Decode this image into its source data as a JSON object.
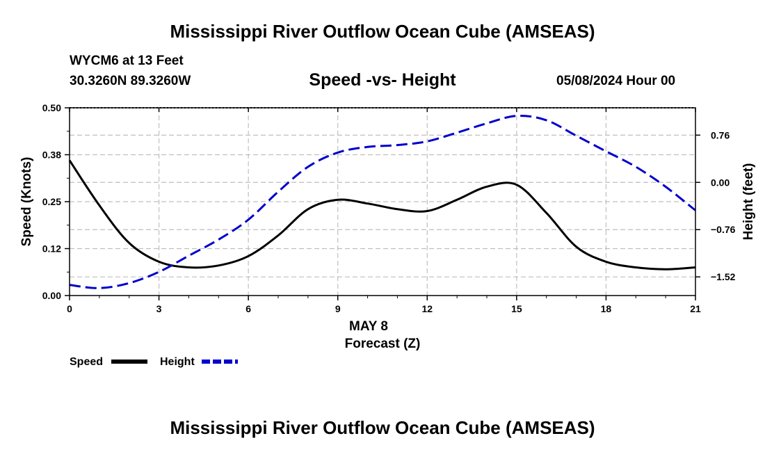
{
  "header": {
    "title": "Mississippi River Outflow Ocean Cube (AMSEAS)",
    "station": "WYCM6 at 13 Feet",
    "coords": "30.3260N  89.3260W",
    "subtitle": "Speed -vs- Height",
    "datetime": "05/08/2024 Hour 00"
  },
  "footer": {
    "title": "Mississippi River Outflow Ocean Cube (AMSEAS)"
  },
  "chart_data": {
    "type": "line",
    "title": "Speed -vs- Height",
    "xlabel": "Forecast (Z)",
    "xsublabel": "MAY 8",
    "ylabel": "Speed (Knots)",
    "y2label": "Height (feet)",
    "xlim": [
      0,
      21
    ],
    "ylim": [
      0,
      0.5
    ],
    "y2lim": [
      -1.82,
      1.2
    ],
    "xticks": [
      0,
      3,
      6,
      9,
      12,
      15,
      18,
      21
    ],
    "xtick_labels": [
      "0",
      "3",
      "6",
      "9",
      "12",
      "15",
      "18",
      "21"
    ],
    "yticks": [
      0,
      0.125,
      0.25,
      0.375,
      0.5
    ],
    "ytick_labels": [
      "0.00",
      "0.12",
      "0.25",
      "0.38",
      "0.50"
    ],
    "y2ticks": [
      -1.52,
      -0.76,
      0.0,
      0.76
    ],
    "y2tick_labels": [
      "−1.52",
      "−0.76",
      "0.00",
      "0.76"
    ],
    "grid": true,
    "series": [
      {
        "name": "Speed",
        "axis": "left",
        "color": "#000000",
        "dash": "solid",
        "x": [
          0,
          1,
          2,
          3,
          4,
          5,
          6,
          7,
          8,
          9,
          10,
          11,
          12,
          13,
          14,
          15,
          16,
          17,
          18,
          19,
          20,
          21
        ],
        "values": [
          0.36,
          0.24,
          0.14,
          0.09,
          0.075,
          0.08,
          0.105,
          0.16,
          0.23,
          0.255,
          0.245,
          0.23,
          0.225,
          0.255,
          0.29,
          0.295,
          0.22,
          0.13,
          0.09,
          0.075,
          0.07,
          0.075
        ]
      },
      {
        "name": "Height",
        "axis": "right",
        "color": "#0000cc",
        "dash": "dashed",
        "x": [
          0,
          1,
          2,
          3,
          4,
          5,
          6,
          7,
          8,
          9,
          10,
          11,
          12,
          13,
          14,
          15,
          16,
          17,
          18,
          19,
          20,
          21
        ],
        "values": [
          -1.65,
          -1.7,
          -1.62,
          -1.44,
          -1.18,
          -0.92,
          -0.6,
          -0.15,
          0.25,
          0.48,
          0.57,
          0.6,
          0.66,
          0.8,
          0.95,
          1.07,
          1.0,
          0.75,
          0.5,
          0.25,
          -0.07,
          -0.45
        ]
      }
    ],
    "legend": [
      {
        "label": "Speed",
        "color": "#000000",
        "dash": "solid"
      },
      {
        "label": "Height",
        "color": "#0000cc",
        "dash": "dashed"
      }
    ]
  }
}
